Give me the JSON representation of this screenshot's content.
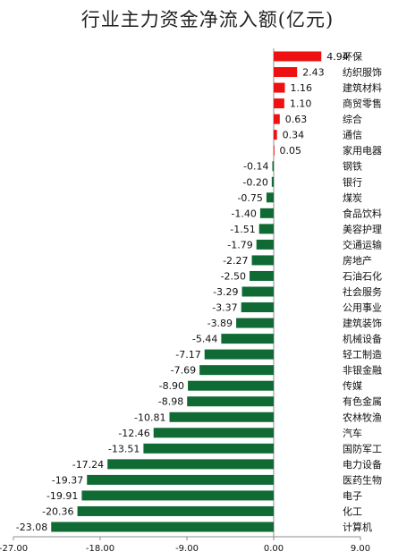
{
  "chart_data": {
    "type": "bar",
    "orientation": "horizontal",
    "title": "行业主力资金净流入额(亿元)",
    "xlabel": "",
    "ylabel": "",
    "xlim": [
      -27,
      9
    ],
    "xticks": [
      -27,
      -18,
      -9,
      0,
      9
    ],
    "xtick_labels": [
      "-27.00",
      "-18.00",
      "-9.00",
      "0.00",
      "9.00"
    ],
    "grid": false,
    "legend": "none",
    "positive_color": "#ee1111",
    "negative_color": "#0f6b33",
    "categories": [
      "环保",
      "纺织服饰",
      "建筑材料",
      "商贸零售",
      "综合",
      "通信",
      "家用电器",
      "钢铁",
      "银行",
      "煤炭",
      "食品饮料",
      "美容护理",
      "交通运输",
      "房地产",
      "石油石化",
      "社会服务",
      "公用事业",
      "建筑装饰",
      "机械设备",
      "轻工制造",
      "非银金融",
      "传媒",
      "有色金属",
      "农林牧渔",
      "汽车",
      "国防军工",
      "电力设备",
      "医药生物",
      "电子",
      "化工",
      "计算机"
    ],
    "values": [
      4.94,
      2.43,
      1.16,
      1.1,
      0.63,
      0.34,
      0.05,
      -0.14,
      -0.2,
      -0.75,
      -1.4,
      -1.51,
      -1.79,
      -2.27,
      -2.5,
      -3.29,
      -3.37,
      -3.89,
      -5.44,
      -7.17,
      -7.69,
      -8.9,
      -8.98,
      -10.81,
      -12.46,
      -13.51,
      -17.24,
      -19.37,
      -19.91,
      -20.36,
      -23.08
    ],
    "value_labels": [
      "4.94",
      "2.43",
      "1.16",
      "1.10",
      "0.63",
      "0.34",
      "0.05",
      "-0.14",
      "-0.20",
      "-0.75",
      "-1.40",
      "-1.51",
      "-1.79",
      "-2.27",
      "-2.50",
      "-3.29",
      "-3.37",
      "-3.89",
      "-5.44",
      "-7.17",
      "-7.69",
      "-8.90",
      "-8.98",
      "-10.81",
      "-12.46",
      "-13.51",
      "-17.24",
      "-19.37",
      "-19.91",
      "-20.36",
      "-23.08"
    ]
  }
}
